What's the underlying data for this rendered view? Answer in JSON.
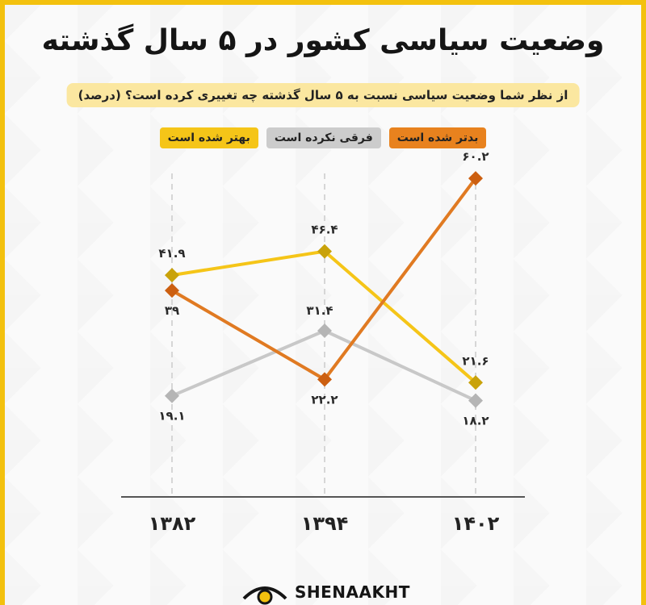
{
  "title": "وضعیت سیاسی کشور در ۵ سال گذشته",
  "question": "از نظر شما وضعیت سیاسی نسبت به ۵ سال گذشته چه تغییری کرده است؟ (درصد)",
  "legend": [
    {
      "label": "بدتر شده است",
      "color": "#e8821e"
    },
    {
      "label": "فرقی نکرده است",
      "color": "#cccccc"
    },
    {
      "label": "بهتر شده است",
      "color": "#f5c518"
    }
  ],
  "brand": "SHENAAKHT",
  "chart_data": {
    "type": "line",
    "categories": [
      "۱۳۸۲",
      "۱۳۹۴",
      "۱۴۰۲"
    ],
    "ylim": [
      0,
      70
    ],
    "series": [
      {
        "name": "بهتر شده است",
        "values": [
          41.9,
          46.4,
          21.6
        ],
        "labels": [
          "۴۱.۹",
          "۴۶.۴",
          "۲۱.۶"
        ],
        "color": "#f5c518",
        "marker": "#c9a20a"
      },
      {
        "name": "فرقی نکرده است",
        "values": [
          19.1,
          31.4,
          18.2
        ],
        "labels": [
          "۱۹.۱",
          "۳۱.۴",
          "۱۸.۲"
        ],
        "color": "#c8c8c8",
        "marker": "#b5b5b5"
      },
      {
        "name": "بدتر شده است",
        "values": [
          39,
          22.2,
          60.2
        ],
        "labels": [
          "۳۹",
          "۲۲.۲",
          "۶۰.۲"
        ],
        "color": "#e07a22",
        "marker": "#cc5f10"
      }
    ]
  }
}
